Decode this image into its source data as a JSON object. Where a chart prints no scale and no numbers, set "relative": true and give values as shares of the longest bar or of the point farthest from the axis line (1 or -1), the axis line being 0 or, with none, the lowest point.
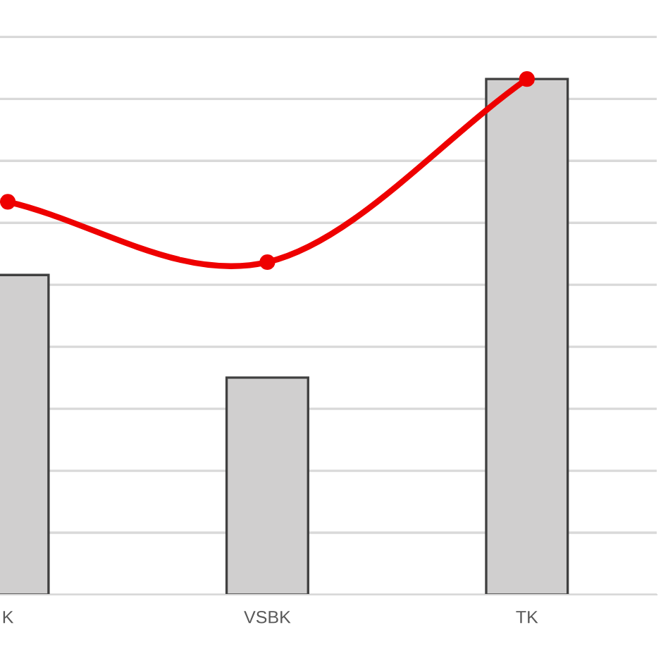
{
  "chart_data": {
    "type": "bar",
    "relative": true,
    "categories": [
      "K",
      "VSBK",
      "TK"
    ],
    "grid": "y",
    "legend": false,
    "series": [
      {
        "color": "#d0cfcf",
        "values": [
          0.62,
          0.421,
          1
        ]
      },
      {
        "type": "line",
        "color": "#ee0000",
        "values": [
          0.762,
          0.645,
          1
        ],
        "marker": "circle",
        "line_style": "solid"
      }
    ]
  }
}
